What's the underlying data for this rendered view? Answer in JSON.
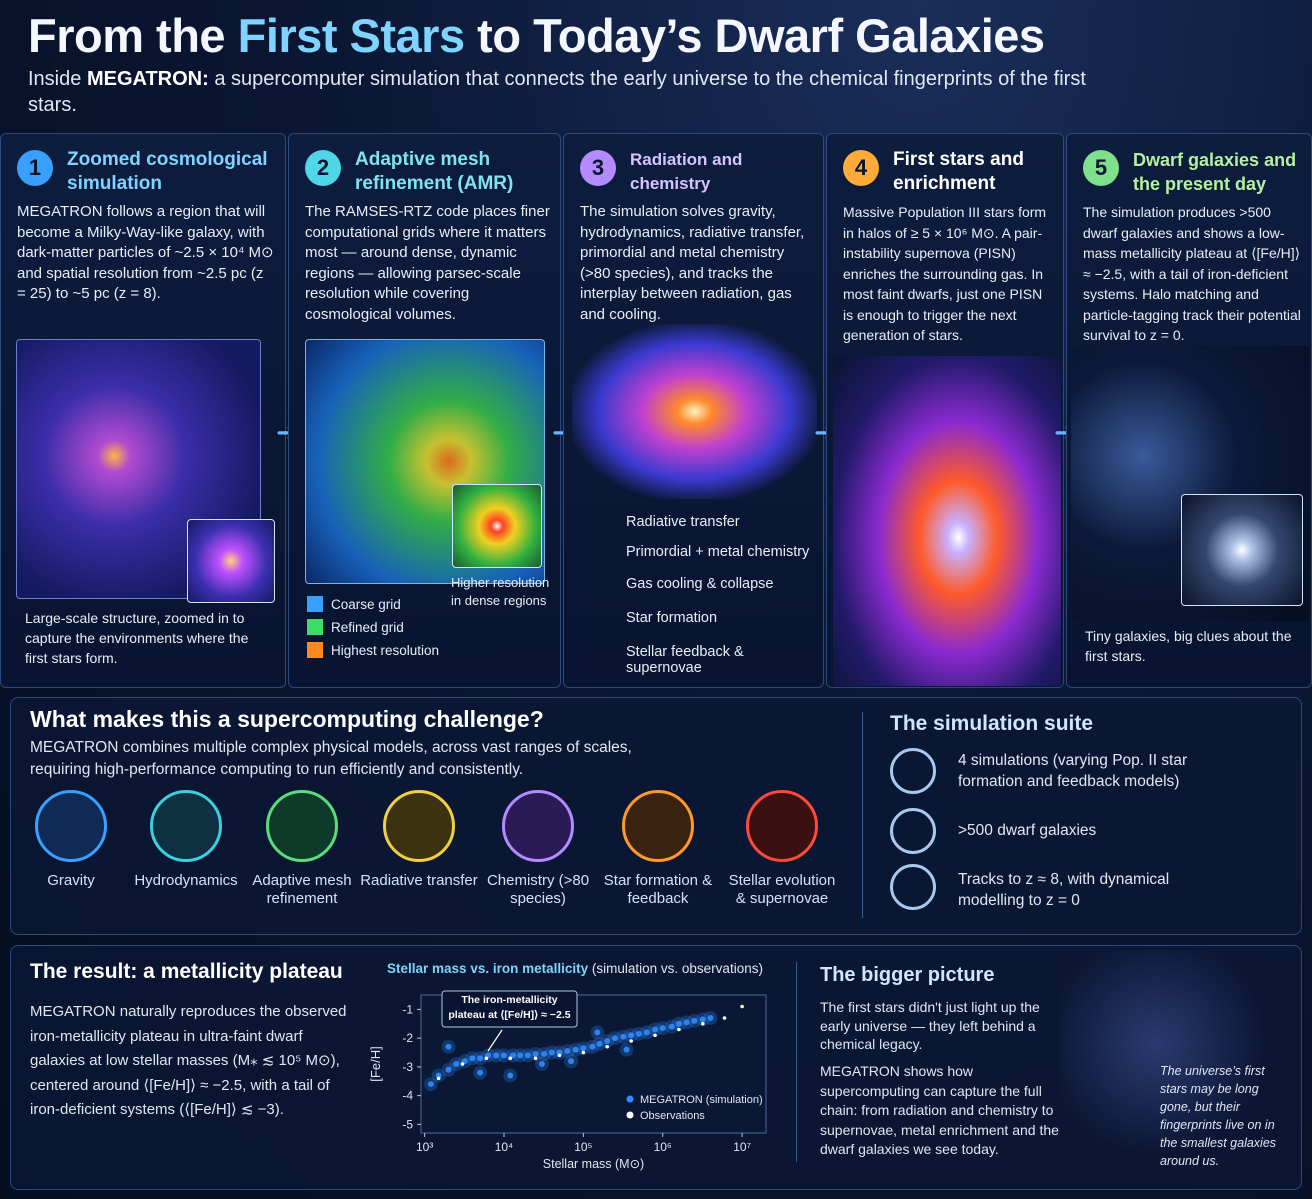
{
  "header": {
    "title": [
      "From the",
      "First Stars",
      "to Today’s Dwarf Galaxies"
    ],
    "subtitle": [
      "Inside",
      "MEGATRON:",
      "a supercomputer simulation that connects the early universe to the chemical fingerprints of the first stars."
    ]
  },
  "steps": [
    {
      "number": "1",
      "title": "Zoomed cosmological simulation",
      "body": "MEGATRON follows a region that will become a Milky-Way-like galaxy, with dark-matter particles of ~2.5 × 10⁴ M⊙ and spatial resolution from ~2.5 pc (z = 25) to ~5 pc (z = 8).",
      "caption": "Large-scale structure, zoomed in to capture the environments where the first stars form."
    },
    {
      "number": "2",
      "title": "Adaptive mesh refinement (AMR)",
      "body": "The RAMSES-RTZ code places finer computational grids where it matters most — around dense, dynamic regions — allowing parsec-scale resolution while covering cosmological volumes.",
      "inset_label": "Higher resolution in dense regions",
      "legend": [
        "Coarse grid",
        "Refined grid",
        "Highest resolution"
      ]
    },
    {
      "number": "3",
      "title": "Radiation and chemistry",
      "body": "The simulation solves gravity, hydrodynamics, radiative transfer, primordial and metal chemistry (>80 species), and tracks the interplay between radiation, gas and cooling.",
      "processes": [
        "Radiative transfer",
        "Primordial + metal chemistry",
        "Gas cooling & collapse",
        "Star formation",
        "Stellar feedback & supernovae"
      ]
    },
    {
      "number": "4",
      "title": "First stars and enrichment",
      "body": "Massive Population III stars form in halos of ≥ 5 × 10⁶ M⊙. A pair-instability supernova (PISN) enriches the surrounding gas. In most faint dwarfs, just one PISN is enough to trigger the next generation of stars."
    },
    {
      "number": "5",
      "title": "Dwarf galaxies and the present day",
      "body": "The simulation produces >500 dwarf galaxies and shows a low-mass metallicity plateau at ⟨[Fe/H]⟩ ≈ −2.5, with a tail of iron-deficient systems. Halo matching and particle-tagging track their potential survival to z = 0.",
      "caption": "Tiny galaxies, big clues about the first stars."
    }
  ],
  "challenge": {
    "title": "What makes this a supercomputing challenge?",
    "text": "MEGATRON combines multiple complex physical models, across vast ranges of scales, requiring high-performance computing to run efficiently and consistently.",
    "models": [
      "Gravity",
      "Hydrodynamics",
      "Adaptive mesh refinement",
      "Radiative transfer",
      "Chemistry (>80 species)",
      "Star formation & feedback",
      "Stellar evolution & supernovae"
    ]
  },
  "suite": {
    "title": "The simulation suite",
    "items": [
      "4 simulations (varying Pop. II star formation and feedback models)",
      ">500 dwarf galaxies",
      "Tracks to z ≈ 8, with dynamical modelling to z = 0"
    ]
  },
  "result": {
    "title": "The result: a metallicity plateau",
    "text": "MEGATRON naturally reproduces the observed iron-metallicity plateau in ultra-faint dwarf galaxies at low stellar masses (M⁎ ≲ 10⁵ M⊙), centered around ⟨[Fe/H]⟩ ≈ −2.5, with a tail of iron-deficient systems (⟨[Fe/H]⟩ ≲ −3)."
  },
  "chart_data": {
    "type": "scatter",
    "title": "Stellar mass vs. iron metallicity",
    "subtitle": "(simulation vs. observations)",
    "x_label": "Stellar mass (M⊙)",
    "y_label": "[Fe/H]",
    "log_x": true,
    "xlim": [
      900,
      20000000
    ],
    "ylim": [
      -5.3,
      -0.5
    ],
    "xticks": [
      {
        "value": 1000,
        "label": "10³"
      },
      {
        "value": 10000,
        "label": "10⁴"
      },
      {
        "value": 100000,
        "label": "10⁵"
      },
      {
        "value": 1000000,
        "label": "10⁶"
      },
      {
        "value": 10000000,
        "label": "10⁷"
      }
    ],
    "yticks": [
      -1,
      -2,
      -3,
      -4,
      -5
    ],
    "annotation": "The iron-metallicity plateau at ⟨[Fe/H]⟩ ≈ −2.5",
    "legend_position": "lower right",
    "series": [
      {
        "name": "MEGATRON (simulation)",
        "color": "#2f8cff",
        "x": [
          1200,
          1500,
          2000,
          2500,
          3200,
          4000,
          5000,
          6300,
          8000,
          10000,
          13000,
          16000,
          20000,
          25000,
          32000,
          40000,
          50000,
          63000,
          80000,
          100000,
          130000,
          160000,
          200000,
          250000,
          320000,
          400000,
          500000,
          630000,
          800000,
          1000000,
          1300000,
          1600000,
          2000000,
          2500000,
          3200000,
          4000000,
          2000,
          5000,
          12000,
          30000,
          70000,
          150000,
          350000
        ],
        "values": [
          -3.6,
          -3.3,
          -3.1,
          -2.9,
          -2.8,
          -2.7,
          -2.7,
          -2.6,
          -2.6,
          -2.6,
          -2.6,
          -2.6,
          -2.6,
          -2.55,
          -2.55,
          -2.5,
          -2.5,
          -2.45,
          -2.4,
          -2.35,
          -2.3,
          -2.2,
          -2.1,
          -2.0,
          -1.95,
          -1.9,
          -1.85,
          -1.8,
          -1.7,
          -1.65,
          -1.6,
          -1.5,
          -1.45,
          -1.4,
          -1.35,
          -1.3,
          -2.3,
          -3.2,
          -3.3,
          -2.9,
          -2.8,
          -1.8,
          -2.4
        ]
      },
      {
        "name": "Observations",
        "color": "#ffffff",
        "x": [
          1500,
          3000,
          6000,
          12000,
          25000,
          50000,
          100000,
          200000,
          400000,
          800000,
          1600000,
          3200000,
          6000000,
          10000000
        ],
        "values": [
          -3.4,
          -2.9,
          -2.7,
          -2.7,
          -2.7,
          -2.6,
          -2.5,
          -2.3,
          -2.1,
          -1.9,
          -1.7,
          -1.5,
          -1.3,
          -0.9
        ]
      }
    ]
  },
  "bigger_picture": {
    "title": "The bigger picture",
    "paragraphs": [
      "The first stars didn't just light up the early universe — they left behind a chemical legacy.",
      "MEGATRON shows how supercomputing can capture the full chain: from radiation and chemistry to supernovae, metal enrichment and the dwarf galaxies we see today."
    ],
    "quote": "The universe’s first stars may be long gone, but their fingerprints live on in the smallest galaxies around us."
  }
}
